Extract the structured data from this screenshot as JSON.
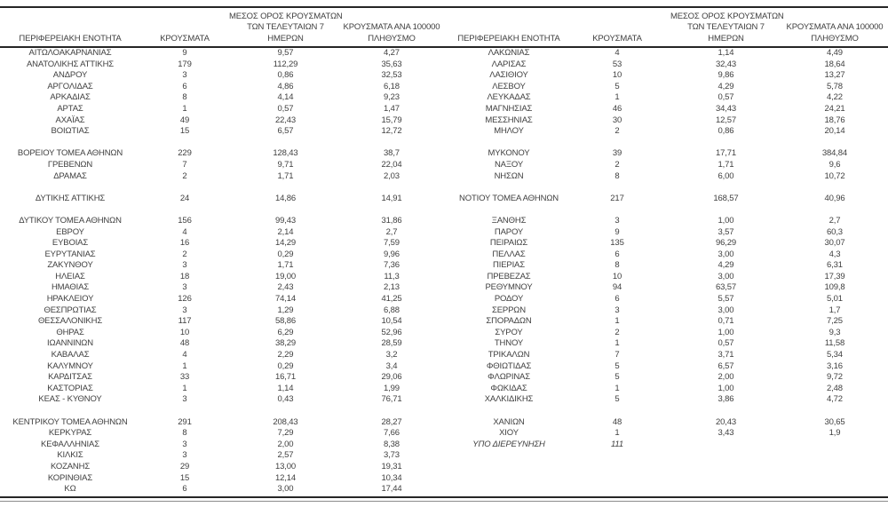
{
  "colors": {
    "background": "#ffffff",
    "text": "#3f3f3f",
    "line_dark": "#262626",
    "line_thin": "#8c8c8c"
  },
  "table": {
    "headers": {
      "region": "ΠΕΡΙΦΕΡΕΙΑΚΗ ΕΝΟΤΗΤΑ",
      "cases": "ΚΡΟΥΣΜΑΤΑ",
      "avg7": "ΜΕΣΟΣ ΟΡΟΣ ΚΡΟΥΣΜΑΤΩΝ\nΤΩΝ ΤΕΛΕΥΤΑΙΩΝ 7\nΗΜΕΡΩΝ",
      "per100k": "ΚΡΟΥΣΜΑΤΑ ΑΝΑ 100000\nΠΛΗΘΥΣΜΟ"
    },
    "left_rows": [
      [
        "ΑΙΤΩΛΟΑΚΑΡΝΑΝΙΑΣ",
        "9",
        "9,57",
        "4,27"
      ],
      [
        "ΑΝΑΤΟΛΙΚΗΣ ΑΤΤΙΚΗΣ",
        "179",
        "112,29",
        "35,63"
      ],
      [
        "ΑΝΔΡΟΥ",
        "3",
        "0,86",
        "32,53"
      ],
      [
        "ΑΡΓΟΛΙΔΑΣ",
        "6",
        "4,86",
        "6,18"
      ],
      [
        "ΑΡΚΑΔΙΑΣ",
        "8",
        "4,14",
        "9,23"
      ],
      [
        "ΑΡΤΑΣ",
        "1",
        "0,57",
        "1,47"
      ],
      [
        "ΑΧΑΪΑΣ",
        "49",
        "22,43",
        "15,79"
      ],
      [
        "ΒΟΙΩΤΙΑΣ",
        "15",
        "6,57",
        "12,72"
      ],
      null,
      [
        "ΒΟΡΕΙΟΥ ΤΟΜΕΑ ΑΘΗΝΩΝ",
        "229",
        "128,43",
        "38,7"
      ],
      [
        "ΓΡΕΒΕΝΩΝ",
        "7",
        "9,71",
        "22,04"
      ],
      [
        "ΔΡΑΜΑΣ",
        "2",
        "1,71",
        "2,03"
      ],
      null,
      [
        "ΔΥΤΙΚΗΣ ΑΤΤΙΚΗΣ",
        "24",
        "14,86",
        "14,91"
      ],
      null,
      [
        "ΔΥΤΙΚΟΥ ΤΟΜΕΑ ΑΘΗΝΩΝ",
        "156",
        "99,43",
        "31,86"
      ],
      [
        "ΕΒΡΟΥ",
        "4",
        "2,14",
        "2,7"
      ],
      [
        "ΕΥΒΟΙΑΣ",
        "16",
        "14,29",
        "7,59"
      ],
      [
        "ΕΥΡΥΤΑΝΙΑΣ",
        "2",
        "0,29",
        "9,96"
      ],
      [
        "ΖΑΚΥΝΘΟΥ",
        "3",
        "1,71",
        "7,36"
      ],
      [
        "ΗΛΕΙΑΣ",
        "18",
        "19,00",
        "11,3"
      ],
      [
        "ΗΜΑΘΙΑΣ",
        "3",
        "2,43",
        "2,13"
      ],
      [
        "ΗΡΑΚΛΕΙΟΥ",
        "126",
        "74,14",
        "41,25"
      ],
      [
        "ΘΕΣΠΡΩΤΙΑΣ",
        "3",
        "1,29",
        "6,88"
      ],
      [
        "ΘΕΣΣΑΛΟΝΙΚΗΣ",
        "117",
        "58,86",
        "10,54"
      ],
      [
        "ΘΗΡΑΣ",
        "10",
        "6,29",
        "52,96"
      ],
      [
        "ΙΩΑΝΝΙΝΩΝ",
        "48",
        "38,29",
        "28,59"
      ],
      [
        "ΚΑΒΑΛΑΣ",
        "4",
        "2,29",
        "3,2"
      ],
      [
        "ΚΑΛΥΜΝΟΥ",
        "1",
        "0,29",
        "3,4"
      ],
      [
        "ΚΑΡΔΙΤΣΑΣ",
        "33",
        "16,71",
        "29,06"
      ],
      [
        "ΚΑΣΤΟΡΙΑΣ",
        "1",
        "1,14",
        "1,99"
      ],
      [
        "ΚΕΑΣ - ΚΥΘΝΟΥ",
        "3",
        "0,43",
        "76,71"
      ],
      null,
      [
        "ΚΕΝΤΡΙΚΟΥ ΤΟΜΕΑ ΑΘΗΝΩΝ",
        "291",
        "208,43",
        "28,27"
      ],
      [
        "ΚΕΡΚΥΡΑΣ",
        "8",
        "7,29",
        "7,66"
      ],
      [
        "ΚΕΦΑΛΛΗΝΙΑΣ",
        "3",
        "2,00",
        "8,38"
      ],
      [
        "ΚΙΛΚΙΣ",
        "3",
        "2,57",
        "3,73"
      ],
      [
        "ΚΟΖΑΝΗΣ",
        "29",
        "13,00",
        "19,31"
      ],
      [
        "ΚΟΡΙΝΘΙΑΣ",
        "15",
        "12,14",
        "10,34"
      ],
      [
        "ΚΩ",
        "6",
        "3,00",
        "17,44"
      ]
    ],
    "right_rows": [
      [
        "ΛΑΚΩΝΙΑΣ",
        "4",
        "1,14",
        "4,49"
      ],
      [
        "ΛΑΡΙΣΑΣ",
        "53",
        "32,43",
        "18,64"
      ],
      [
        "ΛΑΣΙΘΙΟΥ",
        "10",
        "9,86",
        "13,27"
      ],
      [
        "ΛΕΣΒΟΥ",
        "5",
        "4,29",
        "5,78"
      ],
      [
        "ΛΕΥΚΑΔΑΣ",
        "1",
        "0,57",
        "4,22"
      ],
      [
        "ΜΑΓΝΗΣΙΑΣ",
        "46",
        "34,43",
        "24,21"
      ],
      [
        "ΜΕΣΣΗΝΙΑΣ",
        "30",
        "12,57",
        "18,76"
      ],
      [
        "ΜΗΛΟΥ",
        "2",
        "0,86",
        "20,14"
      ],
      null,
      [
        "ΜΥΚΟΝΟΥ",
        "39",
        "17,71",
        "384,84"
      ],
      [
        "ΝΑΞΟΥ",
        "2",
        "1,71",
        "9,6"
      ],
      [
        "ΝΗΣΩΝ",
        "8",
        "6,00",
        "10,72"
      ],
      null,
      [
        "ΝΟΤΙΟΥ ΤΟΜΕΑ ΑΘΗΝΩΝ",
        "217",
        "168,57",
        "40,96"
      ],
      null,
      [
        "ΞΑΝΘΗΣ",
        "3",
        "1,00",
        "2,7"
      ],
      [
        "ΠΑΡΟΥ",
        "9",
        "3,57",
        "60,3"
      ],
      [
        "ΠΕΙΡΑΙΩΣ",
        "135",
        "96,29",
        "30,07"
      ],
      [
        "ΠΕΛΛΑΣ",
        "6",
        "3,00",
        "4,3"
      ],
      [
        "ΠΙΕΡΙΑΣ",
        "8",
        "4,29",
        "6,31"
      ],
      [
        "ΠΡΕΒΕΖΑΣ",
        "10",
        "3,00",
        "17,39"
      ],
      [
        "ΡΕΘΥΜΝΟΥ",
        "94",
        "63,57",
        "109,8"
      ],
      [
        "ΡΟΔΟΥ",
        "6",
        "5,57",
        "5,01"
      ],
      [
        "ΣΕΡΡΩΝ",
        "3",
        "3,00",
        "1,7"
      ],
      [
        "ΣΠΟΡΑΔΩΝ",
        "1",
        "0,71",
        "7,25"
      ],
      [
        "ΣΥΡΟΥ",
        "2",
        "1,00",
        "9,3"
      ],
      [
        "ΤΗΝΟΥ",
        "1",
        "0,57",
        "11,58"
      ],
      [
        "ΤΡΙΚΑΛΩΝ",
        "7",
        "3,71",
        "5,34"
      ],
      [
        "ΦΘΙΩΤΙΔΑΣ",
        "5",
        "6,57",
        "3,16"
      ],
      [
        "ΦΛΩΡΙΝΑΣ",
        "5",
        "2,00",
        "9,72"
      ],
      [
        "ΦΩΚΙΔΑΣ",
        "1",
        "1,00",
        "2,48"
      ],
      [
        "ΧΑΛΚΙΔΙΚΗΣ",
        "5",
        "3,86",
        "4,72"
      ],
      null,
      [
        "ΧΑΝΙΩΝ",
        "48",
        "20,43",
        "30,65"
      ],
      [
        "ΧΙΟΥ",
        "1",
        "3,43",
        "1,9"
      ],
      {
        "c": [
          "ΥΠΟ ΔΙΕΡΕΥΝΗΣΗ",
          "111",
          "",
          ""
        ],
        "i": true
      },
      null,
      null,
      null,
      null
    ]
  }
}
